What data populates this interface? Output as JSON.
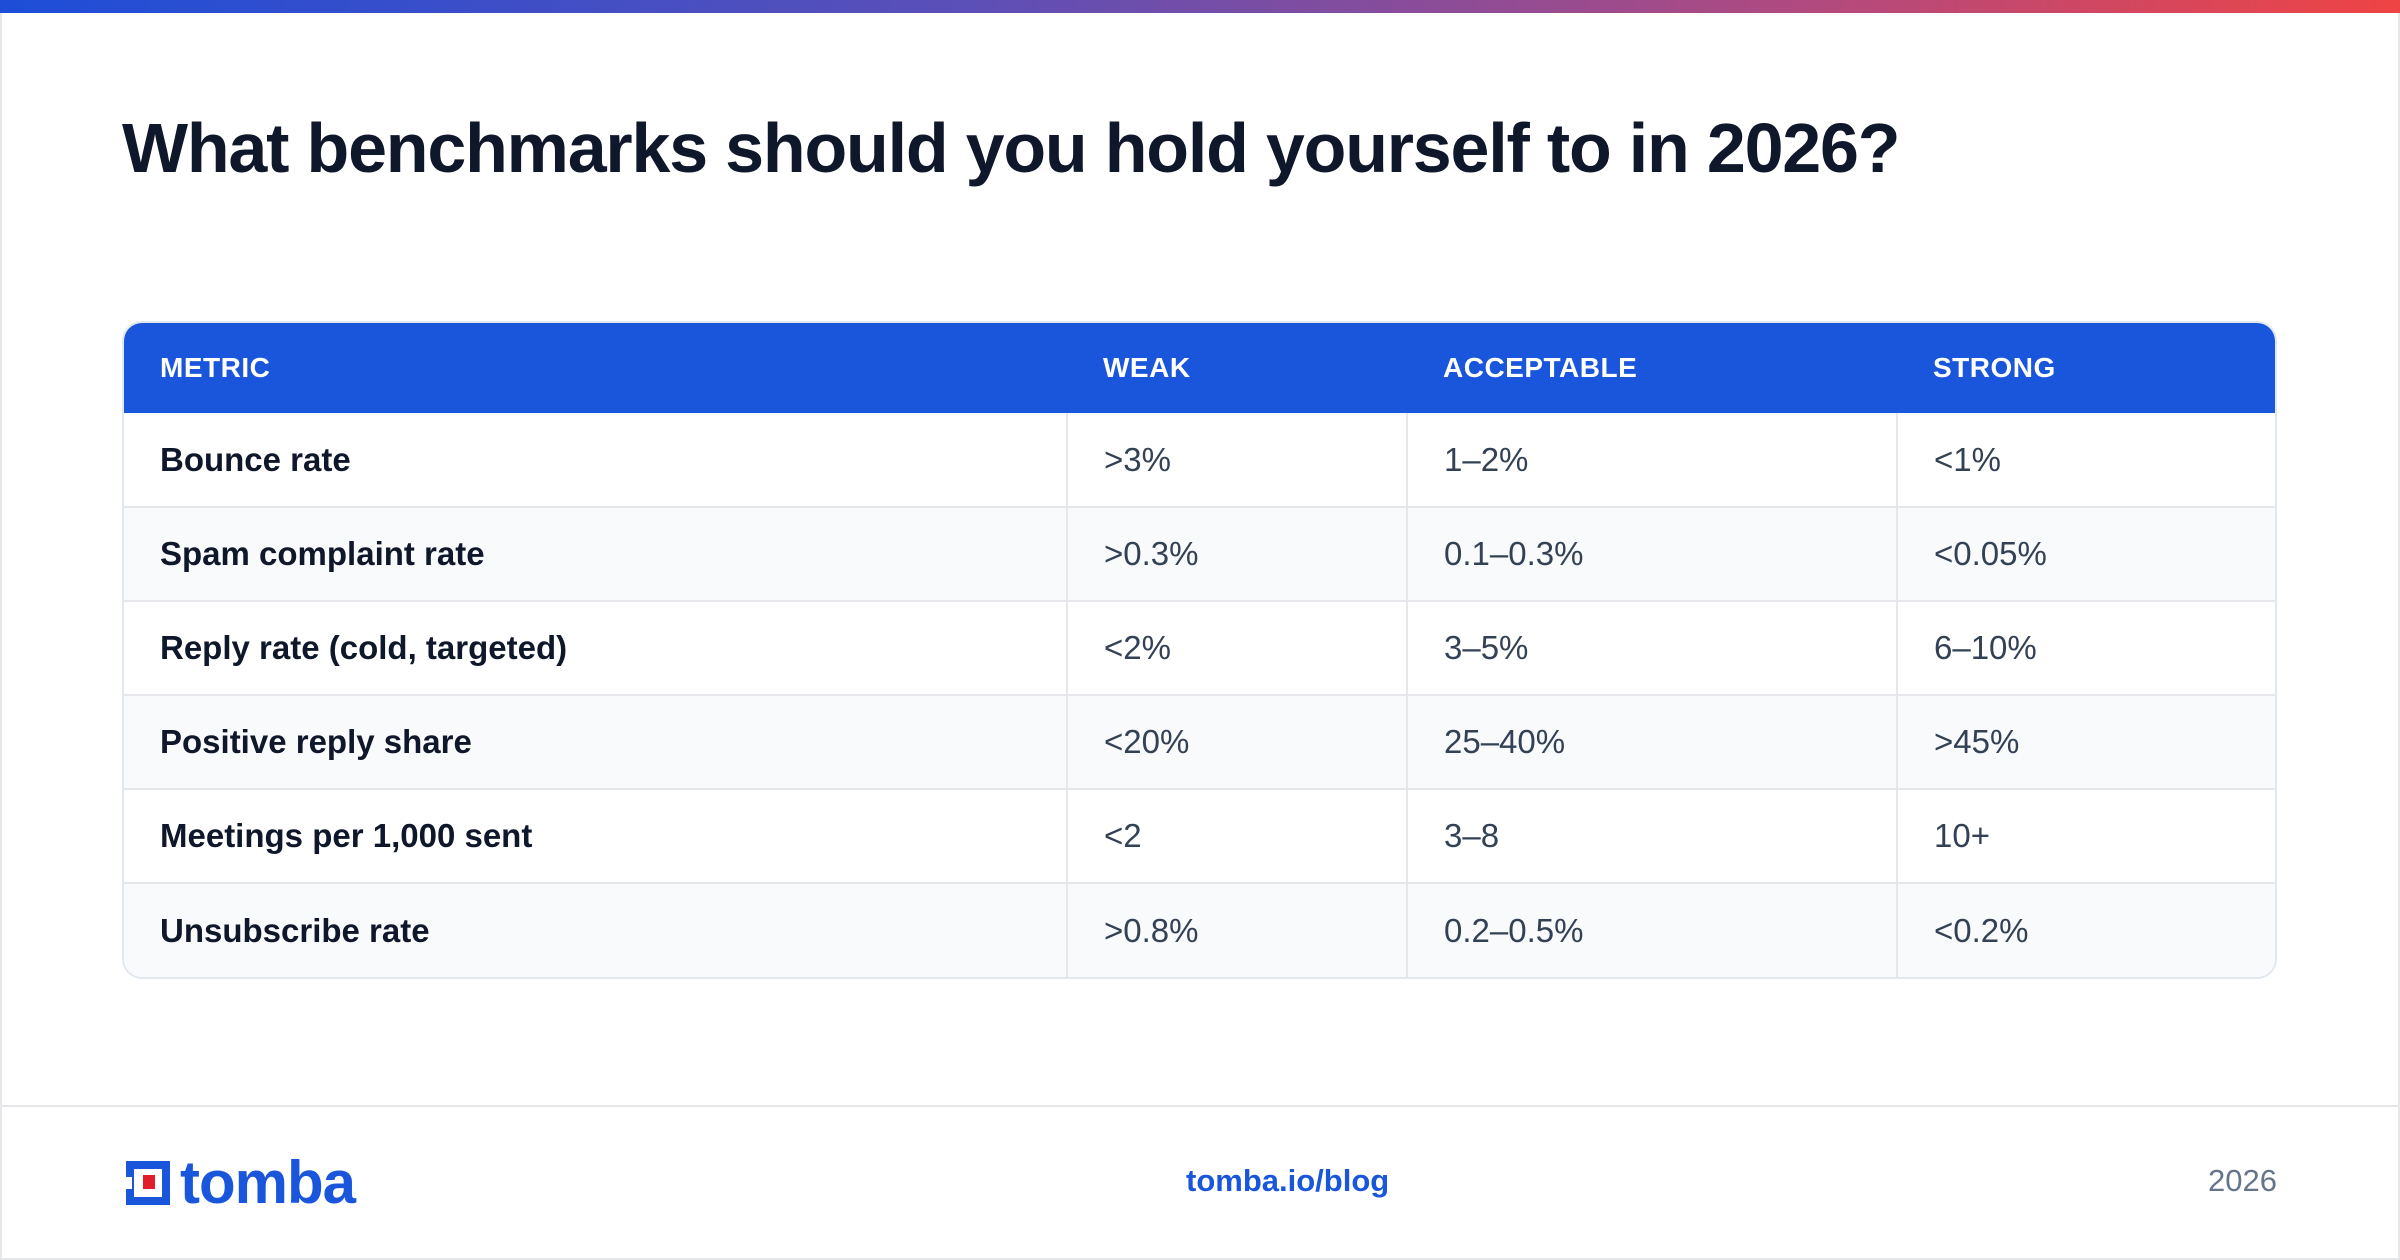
{
  "page": {
    "title": "What benchmarks should you hold yourself to in 2026?"
  },
  "table": {
    "headers": [
      "METRIC",
      "WEAK",
      "ACCEPTABLE",
      "STRONG"
    ],
    "rows": [
      [
        "Bounce rate",
        ">3%",
        "1–2%",
        "<1%"
      ],
      [
        "Spam complaint rate",
        ">0.3%",
        "0.1–0.3%",
        "<0.05%"
      ],
      [
        "Reply rate (cold, targeted)",
        "<2%",
        "3–5%",
        "6–10%"
      ],
      [
        "Positive reply share",
        "<20%",
        "25–40%",
        ">45%"
      ],
      [
        "Meetings per 1,000 sent",
        "<2",
        "3–8",
        "10+"
      ],
      [
        "Unsubscribe rate",
        ">0.8%",
        "0.2–0.5%",
        "<0.2%"
      ]
    ]
  },
  "footer": {
    "logo_text": "tomba",
    "link": "tomba.io/blog",
    "year": "2026"
  },
  "colors": {
    "accent_blue": "#1a56db",
    "logo_red": "#e11d2a",
    "title_text": "#0f172a"
  },
  "icons": {
    "logo": "tomba-logo-icon"
  }
}
